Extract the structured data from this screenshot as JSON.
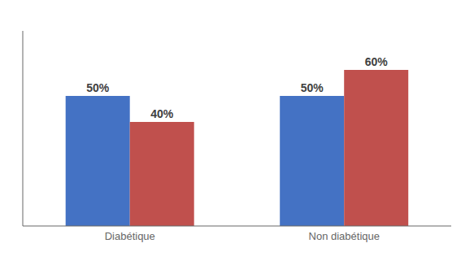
{
  "chart_data": {
    "type": "bar",
    "categories": [
      "Diabétique",
      "Non diabétique"
    ],
    "series": [
      {
        "color": "#4472C4",
        "values": [
          50,
          50
        ],
        "value_labels": [
          "50%",
          "50%"
        ]
      },
      {
        "color": "#C0504D",
        "values": [
          40,
          60
        ],
        "value_labels": [
          "40%",
          "60%"
        ]
      }
    ],
    "ylim": [
      0,
      75
    ],
    "data_labels": true,
    "tick_labels": "x",
    "grid": false
  }
}
